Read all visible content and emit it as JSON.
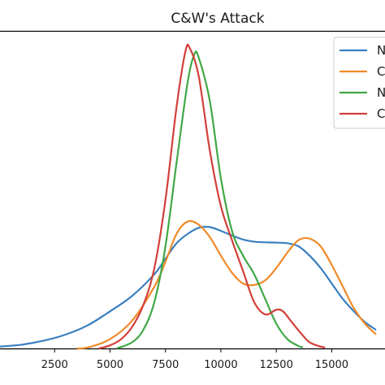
{
  "chart_data": {
    "type": "line",
    "title": "C&W's Attack",
    "xlabel": "",
    "ylabel": "",
    "xlim": [
      0,
      17000
    ],
    "ylim": [
      0,
      1
    ],
    "grid": false,
    "legend_position": "top-right",
    "x_ticks": [
      2500,
      5000,
      7500,
      10000,
      12500,
      15000
    ],
    "x_tick_labels": [
      "2500",
      "5000",
      "7500",
      "10000",
      12500,
      "15000"
    ],
    "series": [
      {
        "name": "N",
        "color": "#3a7fc0",
        "points": [
          [
            0,
            0.006
          ],
          [
            1000,
            0.012
          ],
          [
            2000,
            0.025
          ],
          [
            3000,
            0.045
          ],
          [
            4000,
            0.075
          ],
          [
            5000,
            0.12
          ],
          [
            6000,
            0.17
          ],
          [
            7000,
            0.24
          ],
          [
            7500,
            0.29
          ],
          [
            8000,
            0.34
          ],
          [
            8500,
            0.37
          ],
          [
            9000,
            0.39
          ],
          [
            9500,
            0.392
          ],
          [
            10000,
            0.38
          ],
          [
            10500,
            0.365
          ],
          [
            11000,
            0.352
          ],
          [
            11500,
            0.345
          ],
          [
            12000,
            0.343
          ],
          [
            12500,
            0.342
          ],
          [
            13000,
            0.34
          ],
          [
            13500,
            0.33
          ],
          [
            14000,
            0.3
          ],
          [
            14500,
            0.26
          ],
          [
            15000,
            0.21
          ],
          [
            15500,
            0.16
          ],
          [
            16000,
            0.12
          ],
          [
            16500,
            0.085
          ],
          [
            17000,
            0.06
          ]
        ]
      },
      {
        "name": "C",
        "color": "#f08a28",
        "points": [
          [
            3500,
            0.0
          ],
          [
            4000,
            0.003
          ],
          [
            5000,
            0.03
          ],
          [
            6000,
            0.09
          ],
          [
            7000,
            0.2
          ],
          [
            7500,
            0.28
          ],
          [
            8000,
            0.37
          ],
          [
            8500,
            0.41
          ],
          [
            9000,
            0.4
          ],
          [
            9500,
            0.36
          ],
          [
            10000,
            0.3
          ],
          [
            10500,
            0.245
          ],
          [
            11000,
            0.21
          ],
          [
            11500,
            0.205
          ],
          [
            12000,
            0.22
          ],
          [
            12500,
            0.26
          ],
          [
            13000,
            0.31
          ],
          [
            13500,
            0.35
          ],
          [
            14000,
            0.355
          ],
          [
            14500,
            0.33
          ],
          [
            15000,
            0.27
          ],
          [
            15500,
            0.2
          ],
          [
            16000,
            0.13
          ],
          [
            16500,
            0.08
          ],
          [
            17000,
            0.045
          ]
        ]
      },
      {
        "name": "N",
        "color": "#40a845",
        "points": [
          [
            5300,
            0.0
          ],
          [
            6000,
            0.02
          ],
          [
            6500,
            0.06
          ],
          [
            7000,
            0.15
          ],
          [
            7500,
            0.33
          ],
          [
            8000,
            0.6
          ],
          [
            8500,
            0.86
          ],
          [
            8800,
            0.95
          ],
          [
            9000,
            0.94
          ],
          [
            9500,
            0.8
          ],
          [
            10000,
            0.55
          ],
          [
            10500,
            0.38
          ],
          [
            11000,
            0.3
          ],
          [
            11500,
            0.24
          ],
          [
            12000,
            0.16
          ],
          [
            12500,
            0.08
          ],
          [
            13000,
            0.03
          ],
          [
            13500,
            0.008
          ],
          [
            13700,
            0.004
          ]
        ]
      },
      {
        "name": "C",
        "color": "#d33f3a",
        "points": [
          [
            4500,
            0.0
          ],
          [
            5000,
            0.01
          ],
          [
            5500,
            0.03
          ],
          [
            6000,
            0.07
          ],
          [
            6500,
            0.14
          ],
          [
            7000,
            0.26
          ],
          [
            7500,
            0.48
          ],
          [
            8000,
            0.78
          ],
          [
            8400,
            0.96
          ],
          [
            8600,
            0.97
          ],
          [
            9000,
            0.88
          ],
          [
            9500,
            0.64
          ],
          [
            10000,
            0.46
          ],
          [
            10500,
            0.35
          ],
          [
            11000,
            0.25
          ],
          [
            11500,
            0.15
          ],
          [
            12000,
            0.11
          ],
          [
            12500,
            0.125
          ],
          [
            12800,
            0.12
          ],
          [
            13200,
            0.085
          ],
          [
            13600,
            0.05
          ],
          [
            14000,
            0.02
          ],
          [
            14500,
            0.006
          ],
          [
            14700,
            0.003
          ]
        ]
      }
    ]
  }
}
